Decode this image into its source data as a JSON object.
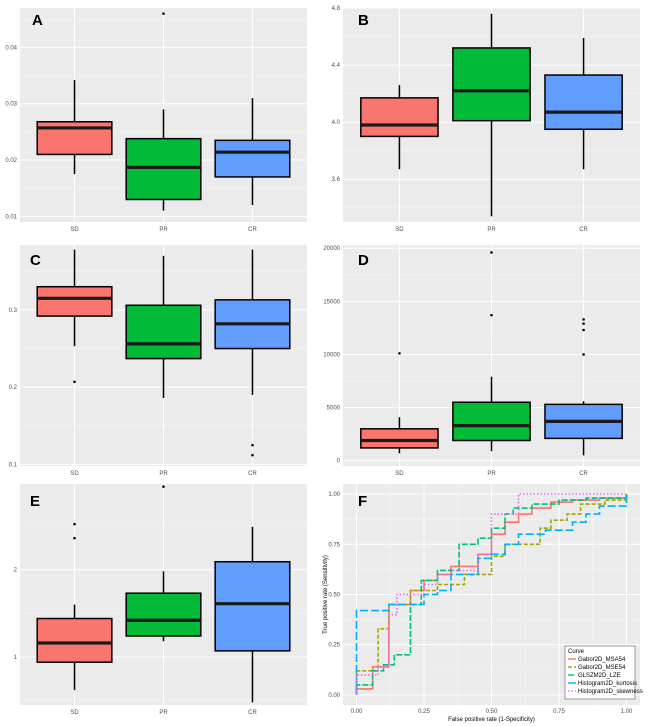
{
  "colors": {
    "background": "#ebebeb",
    "grid_major": "#ffffff",
    "SD": "#f8766d",
    "PR": "#00ba38",
    "CR": "#619cff",
    "Gabor2D_MSA54": "#f8766d",
    "Gabor2D_MSE54": "#a3a500",
    "GLSZM2D_LZE": "#00bf7d",
    "Histogram2D_kurtosis": "#00b0f6",
    "Histogram2D_skewness": "#e76bf3"
  },
  "chart_data": [
    {
      "id": "A",
      "type": "box",
      "categories": [
        "SD",
        "PR",
        "CR"
      ],
      "ylim": [
        0.009,
        0.047
      ],
      "yticks": [
        0.01,
        0.02,
        0.03,
        0.04
      ],
      "ytick_labels": [
        "0.01",
        "0.02",
        "0.03",
        "0.04"
      ],
      "boxes": [
        {
          "name": "SD",
          "whisker_low": 0.0175,
          "q1": 0.021,
          "median": 0.0257,
          "q3": 0.0268,
          "whisker_high": 0.0342,
          "outliers": []
        },
        {
          "name": "PR",
          "whisker_low": 0.011,
          "q1": 0.013,
          "median": 0.0187,
          "q3": 0.0238,
          "whisker_high": 0.029,
          "outliers": [
            0.046
          ]
        },
        {
          "name": "CR",
          "whisker_low": 0.012,
          "q1": 0.017,
          "median": 0.0214,
          "q3": 0.0235,
          "whisker_high": 0.031,
          "outliers": []
        }
      ]
    },
    {
      "id": "B",
      "type": "box",
      "categories": [
        "SD",
        "PR",
        "CR"
      ],
      "ylim": [
        3.3,
        4.8
      ],
      "yticks": [
        3.6,
        4.0,
        4.4,
        4.8
      ],
      "ytick_labels": [
        "3.6",
        "4.0",
        "4.4",
        "4.8"
      ],
      "boxes": [
        {
          "name": "SD",
          "whisker_low": 3.67,
          "q1": 3.9,
          "median": 3.98,
          "q3": 4.17,
          "whisker_high": 4.26,
          "outliers": []
        },
        {
          "name": "PR",
          "whisker_low": 3.34,
          "q1": 4.01,
          "median": 4.22,
          "q3": 4.52,
          "whisker_high": 4.76,
          "outliers": []
        },
        {
          "name": "CR",
          "whisker_low": 3.67,
          "q1": 3.95,
          "median": 4.07,
          "q3": 4.33,
          "whisker_high": 4.59,
          "outliers": []
        }
      ]
    },
    {
      "id": "C",
      "type": "box",
      "categories": [
        "SD",
        "PR",
        "CR"
      ],
      "ylim": [
        0.098,
        0.384
      ],
      "yticks": [
        0.1,
        0.2,
        0.3
      ],
      "ytick_labels": [
        "0.1",
        "0.2",
        "0.3"
      ],
      "boxes": [
        {
          "name": "SD",
          "whisker_low": 0.253,
          "q1": 0.292,
          "median": 0.315,
          "q3": 0.33,
          "whisker_high": 0.378,
          "outliers": [
            0.207
          ]
        },
        {
          "name": "PR",
          "whisker_low": 0.186,
          "q1": 0.237,
          "median": 0.256,
          "q3": 0.306,
          "whisker_high": 0.37,
          "outliers": []
        },
        {
          "name": "CR",
          "whisker_low": 0.19,
          "q1": 0.25,
          "median": 0.282,
          "q3": 0.313,
          "whisker_high": 0.378,
          "outliers": [
            0.125,
            0.112
          ]
        }
      ]
    },
    {
      "id": "D",
      "type": "box",
      "categories": [
        "SD",
        "PR",
        "CR"
      ],
      "ylim": [
        -500,
        20300
      ],
      "yticks": [
        0,
        5000,
        10000,
        15000,
        20000
      ],
      "ytick_labels": [
        "0",
        "5000",
        "10000",
        "15000",
        "20000"
      ],
      "boxes": [
        {
          "name": "SD",
          "whisker_low": 700,
          "q1": 1200,
          "median": 1900,
          "q3": 3000,
          "whisker_high": 4100,
          "outliers": [
            10100
          ]
        },
        {
          "name": "PR",
          "whisker_low": 900,
          "q1": 1900,
          "median": 3300,
          "q3": 5500,
          "whisker_high": 7900,
          "outliers": [
            13700,
            19600
          ]
        },
        {
          "name": "CR",
          "whisker_low": 500,
          "q1": 2100,
          "median": 3700,
          "q3": 5300,
          "whisker_high": 5600,
          "outliers": [
            10000,
            12300,
            12900,
            13300
          ]
        }
      ]
    },
    {
      "id": "E",
      "type": "box",
      "categories": [
        "SD",
        "PR",
        "CR"
      ],
      "ylim": [
        0.45,
        2.98
      ],
      "yticks": [
        1,
        2
      ],
      "ytick_labels": [
        "1",
        "2"
      ],
      "boxes": [
        {
          "name": "SD",
          "whisker_low": 0.62,
          "q1": 0.94,
          "median": 1.16,
          "q3": 1.44,
          "whisker_high": 1.6,
          "outliers": [
            2.36,
            2.52
          ]
        },
        {
          "name": "PR",
          "whisker_low": 1.18,
          "q1": 1.24,
          "median": 1.42,
          "q3": 1.73,
          "whisker_high": 1.98,
          "outliers": [
            2.95
          ]
        },
        {
          "name": "CR",
          "whisker_low": 0.48,
          "q1": 1.07,
          "median": 1.61,
          "q3": 2.09,
          "whisker_high": 2.49,
          "outliers": []
        }
      ]
    },
    {
      "id": "F",
      "type": "line",
      "title": "",
      "xlabel": "False positive rate (1-Specificity)",
      "ylabel": "True positive rate (Sensitivity)",
      "xlim": [
        -0.05,
        1.05
      ],
      "ylim": [
        -0.05,
        1.05
      ],
      "xticks": [
        0,
        0.25,
        0.5,
        0.75,
        1
      ],
      "xtick_labels": [
        "0.00",
        "0.25",
        "0.50",
        "0.75",
        "1.00"
      ],
      "yticks": [
        0,
        0.25,
        0.5,
        0.75,
        1
      ],
      "ytick_labels": [
        "0.00",
        "0.25",
        "0.50",
        "0.75",
        "1.00"
      ],
      "legend": {
        "title": "Curve",
        "position": "bottom-right"
      },
      "series": [
        {
          "name": "Gabor2D_MSA54",
          "dash": "solid",
          "x": [
            0,
            0,
            0.06,
            0.06,
            0.12,
            0.12,
            0.2,
            0.2,
            0.25,
            0.25,
            0.3,
            0.3,
            0.35,
            0.35,
            0.45,
            0.45,
            0.5,
            0.5,
            0.55,
            0.55,
            0.6,
            0.6,
            0.65,
            0.65,
            0.72,
            0.72,
            0.8,
            0.8,
            0.9,
            0.9,
            1.0,
            1.0
          ],
          "y": [
            0,
            0.03,
            0.03,
            0.14,
            0.14,
            0.45,
            0.45,
            0.52,
            0.52,
            0.57,
            0.57,
            0.6,
            0.6,
            0.64,
            0.64,
            0.7,
            0.7,
            0.8,
            0.8,
            0.86,
            0.86,
            0.9,
            0.9,
            0.93,
            0.93,
            0.96,
            0.96,
            0.97,
            0.97,
            0.98,
            0.98,
            1.0
          ]
        },
        {
          "name": "Gabor2D_MSE54",
          "dash": "4,2",
          "x": [
            0,
            0,
            0.08,
            0.08,
            0.12,
            0.12,
            0.2,
            0.2,
            0.3,
            0.3,
            0.4,
            0.4,
            0.5,
            0.5,
            0.55,
            0.55,
            0.68,
            0.68,
            0.72,
            0.72,
            0.78,
            0.78,
            0.83,
            0.83,
            0.92,
            0.92,
            1.0,
            1.0
          ],
          "y": [
            0,
            0.12,
            0.12,
            0.33,
            0.33,
            0.45,
            0.45,
            0.52,
            0.52,
            0.55,
            0.55,
            0.6,
            0.6,
            0.69,
            0.69,
            0.75,
            0.75,
            0.83,
            0.83,
            0.87,
            0.87,
            0.9,
            0.9,
            0.95,
            0.95,
            0.97,
            0.97,
            1.0
          ]
        },
        {
          "name": "GLSZM2D_LZE",
          "dash": "6,2",
          "x": [
            0,
            0,
            0.06,
            0.06,
            0.1,
            0.1,
            0.14,
            0.14,
            0.2,
            0.2,
            0.24,
            0.24,
            0.3,
            0.3,
            0.38,
            0.38,
            0.45,
            0.45,
            0.5,
            0.5,
            0.55,
            0.55,
            0.58,
            0.58,
            0.65,
            0.65,
            0.75,
            0.75,
            0.85,
            0.85,
            1.0,
            1.0
          ],
          "y": [
            0,
            0.05,
            0.05,
            0.12,
            0.12,
            0.15,
            0.15,
            0.2,
            0.2,
            0.45,
            0.45,
            0.57,
            0.57,
            0.62,
            0.62,
            0.75,
            0.75,
            0.78,
            0.78,
            0.83,
            0.83,
            0.9,
            0.9,
            0.93,
            0.93,
            0.95,
            0.95,
            0.97,
            0.97,
            0.98,
            0.98,
            1.0
          ]
        },
        {
          "name": "Histogram2D_kurtosis",
          "dash": "8,3",
          "x": [
            0,
            0,
            0.12,
            0.12,
            0.25,
            0.25,
            0.3,
            0.3,
            0.35,
            0.35,
            0.45,
            0.45,
            0.5,
            0.5,
            0.55,
            0.55,
            0.6,
            0.6,
            0.7,
            0.7,
            0.8,
            0.8,
            0.85,
            0.85,
            0.9,
            0.9,
            1.0,
            1.0
          ],
          "y": [
            0,
            0.42,
            0.42,
            0.45,
            0.45,
            0.5,
            0.5,
            0.52,
            0.52,
            0.6,
            0.6,
            0.68,
            0.68,
            0.7,
            0.7,
            0.75,
            0.75,
            0.8,
            0.8,
            0.82,
            0.82,
            0.86,
            0.86,
            0.9,
            0.9,
            0.94,
            0.94,
            1.0
          ]
        },
        {
          "name": "Histogram2D_skewness",
          "dash": "1.5,2",
          "x": [
            0,
            0,
            0.08,
            0.08,
            0.12,
            0.12,
            0.15,
            0.15,
            0.25,
            0.25,
            0.3,
            0.3,
            0.35,
            0.35,
            0.45,
            0.45,
            0.5,
            0.5,
            0.6,
            0.6,
            0.7,
            0.7,
            0.85,
            0.85,
            1.0,
            1.0
          ],
          "y": [
            0,
            0.1,
            0.1,
            0.14,
            0.14,
            0.4,
            0.4,
            0.5,
            0.5,
            0.55,
            0.55,
            0.6,
            0.6,
            0.62,
            0.62,
            0.7,
            0.7,
            0.9,
            0.9,
            1.0,
            1.0,
            1.0,
            1.0,
            1.0,
            1.0,
            1.0
          ]
        }
      ]
    }
  ]
}
